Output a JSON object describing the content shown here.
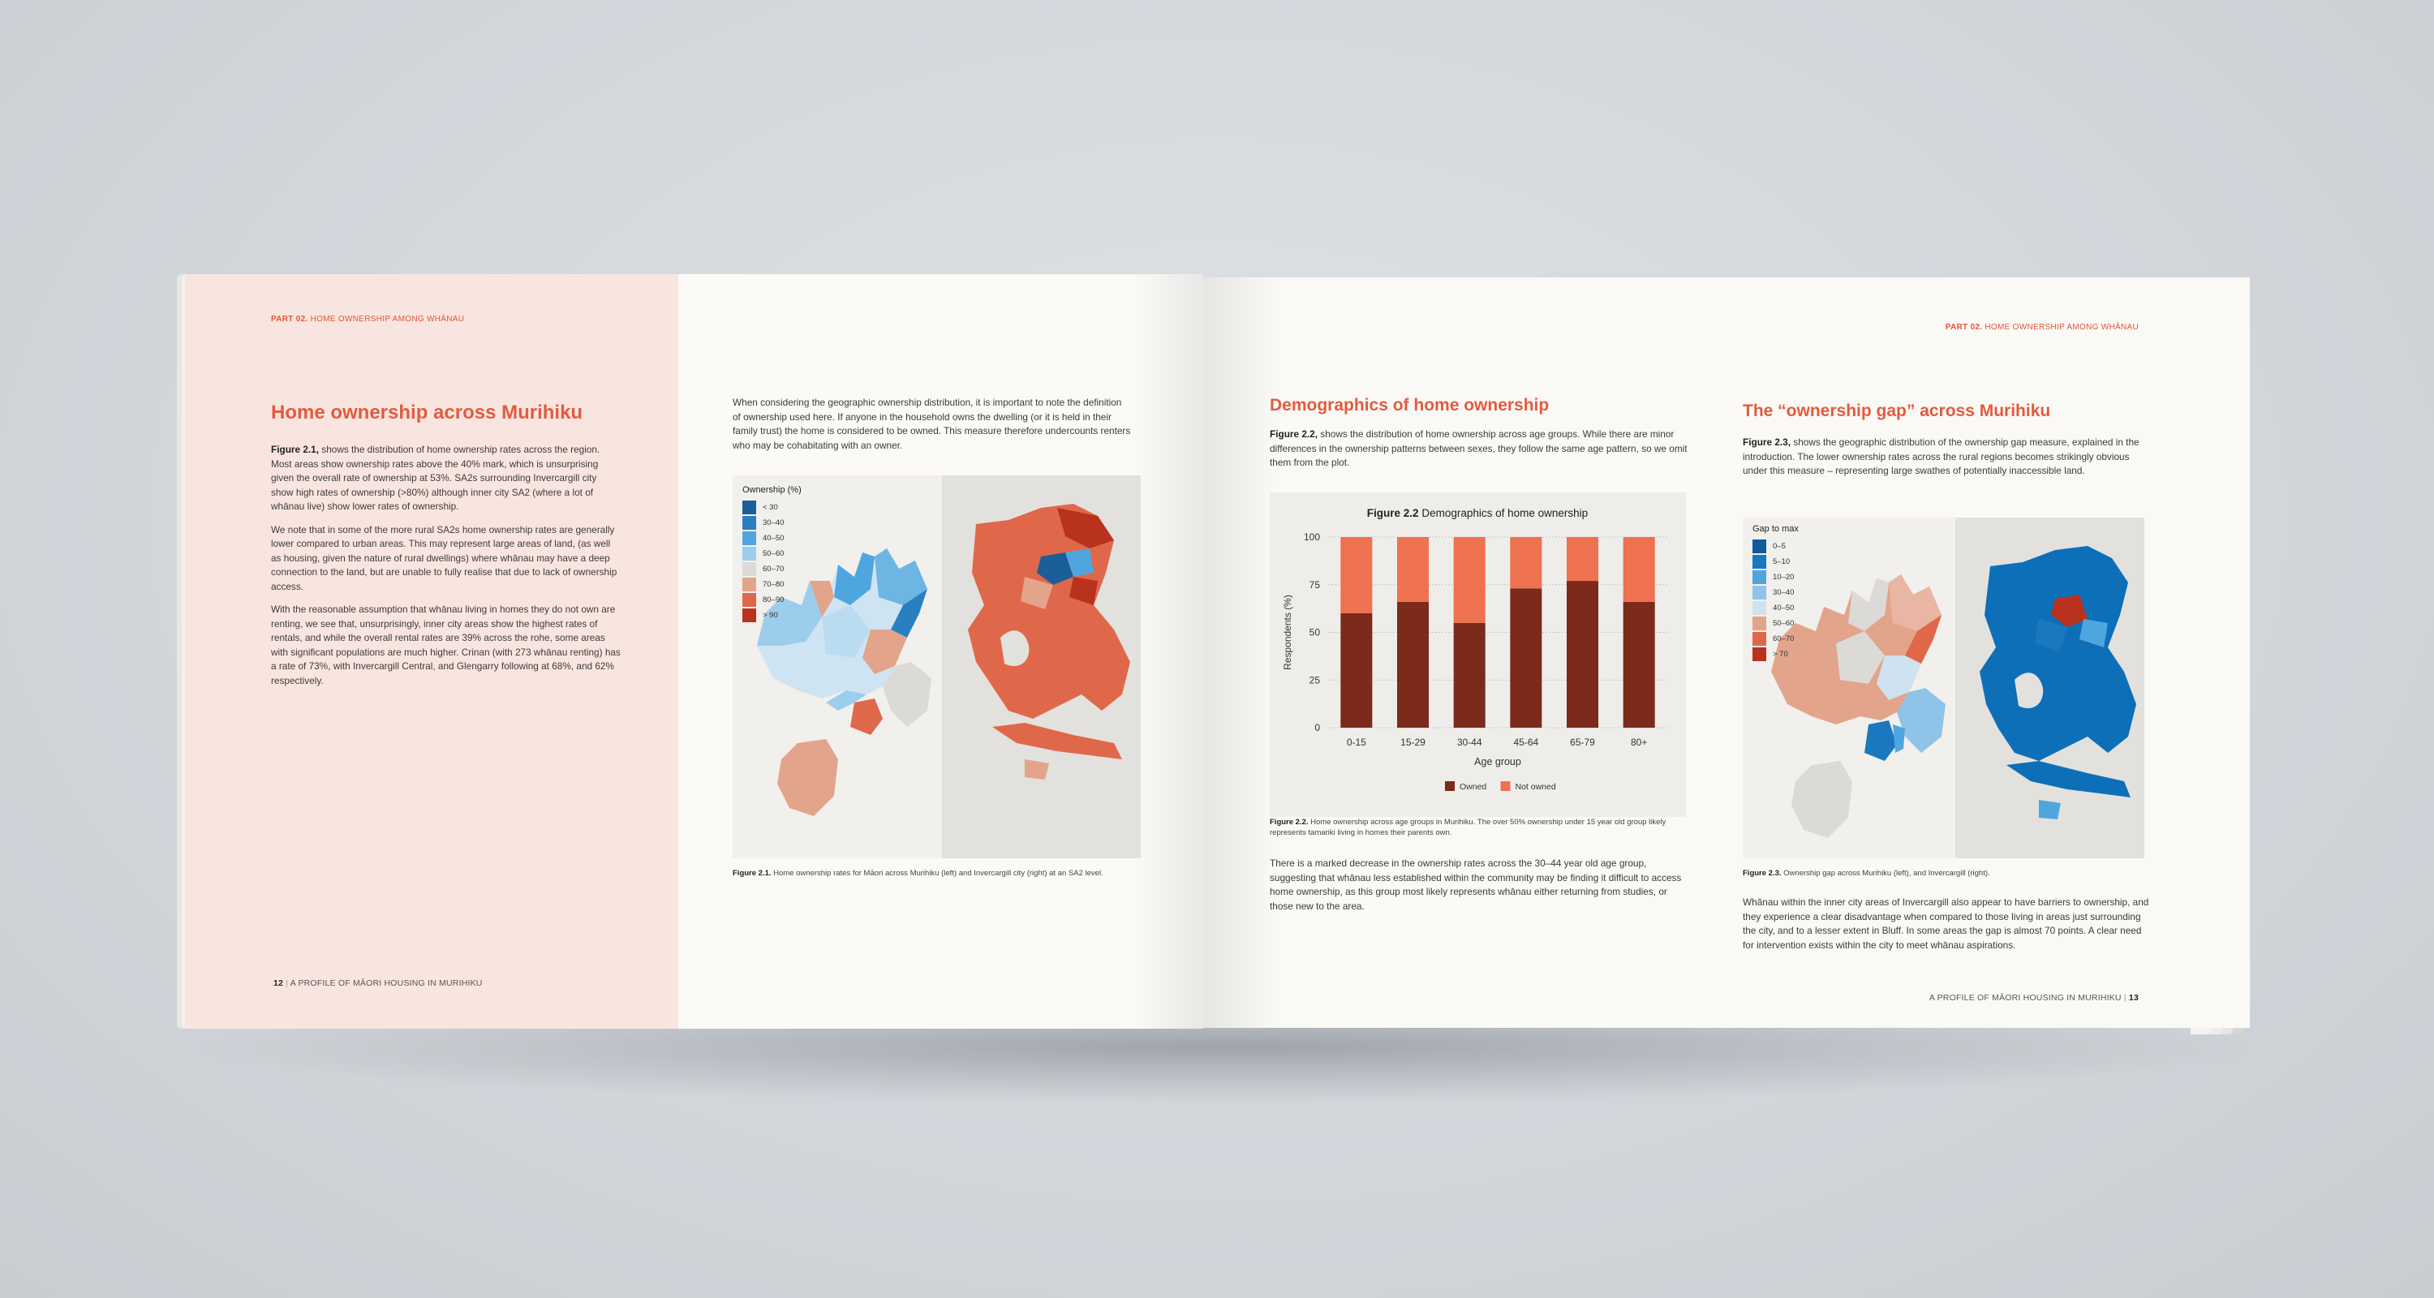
{
  "colors": {
    "accent": "#e25b3f",
    "owned": "#7b2a1c",
    "not_owned": "#ee7150"
  },
  "left_page": {
    "running_head": {
      "part": "PART 02.",
      "title": "HOME OWNERSHIP AMONG WHĀNAU"
    },
    "heading": "Home ownership across Murihiku",
    "intro": {
      "ref": "Figure 2.1,",
      "text": " shows the distribution of home ownership rates across the region. Most areas show ownership rates above the 40% mark, which is unsurprising given the overall rate of ownership at 53%. SA2s surrounding Invercargill city show high rates of ownership (>80%) although inner city SA2 (where a lot of whānau live) show lower rates of ownership."
    },
    "para2": "We note that in some of the more rural SA2s home ownership rates are generally lower compared to urban areas. This may represent large areas of land, (as well as housing, given the nature of rural dwellings) where whānau may have a deep connection to the land, but are unable to fully realise that due to lack of ownership access.",
    "para3": "With the reasonable assumption that whānau living in homes they do not own are renting, we see that, unsurprisingly, inner city areas show the highest rates of rentals, and while the overall rental rates are 39% across the rohe, some areas with significant populations are much higher. Crinan (with 273 whānau renting) has a rate of 73%, with Invercargill Central, and Glengarry following at 68%, and 62% respectively.",
    "column2": "When considering the geographic ownership distribution, it is important to note the definition of ownership used here. If anyone in the household owns the dwelling (or it is held in their family trust) the home is considered to be owned. This measure therefore undercounts renters who may be cohabitating with an owner.",
    "figure_caption": {
      "ref": "Figure 2.1.",
      "text": " Home ownership rates for Māori across Murihiku (left) and Invercargill city (right) at an SA2 level."
    },
    "legend": {
      "title": "Ownership (%)",
      "items": [
        {
          "label": "< 30",
          "color": "#1a5f99"
        },
        {
          "label": "30–40",
          "color": "#2a7fc1"
        },
        {
          "label": "40–50",
          "color": "#4fa6de"
        },
        {
          "label": "50–60",
          "color": "#9dcdec"
        },
        {
          "label": "60–70",
          "color": "#dcdad6"
        },
        {
          "label": "70–80",
          "color": "#e3a48c"
        },
        {
          "label": "80–90",
          "color": "#e0684a"
        },
        {
          "label": "> 90",
          "color": "#b8321e"
        }
      ]
    },
    "folio": {
      "number": "12",
      "title": "A PROFILE OF MĀORI HOUSING IN MURIHIKU"
    }
  },
  "right_page": {
    "running_head": {
      "part": "PART 02.",
      "title": "HOME OWNERSHIP AMONG WHĀNAU"
    },
    "demo_heading": "Demographics of home ownership",
    "demo_intro": {
      "ref": "Figure 2.2,",
      "text": " shows the distribution of home ownership across age groups. While there are minor differences in the ownership patterns between sexes, they follow the same age pattern, so we omit them from the plot."
    },
    "fig22_caption": {
      "ref": "Figure 2.2.",
      "text": " Home ownership across age groups in Murihiku. The over 50% ownership under 15 year old group likely represents tamariki living in homes their parents own."
    },
    "demo_para": "There is a marked decrease in the ownership rates across the 30–44 year old age group, suggesting that whānau less established within the community may be finding it difficult to access home ownership, as this group most likely represents whānau either returning from studies, or those new to the area.",
    "gap_heading": "The “ownership gap” across Murihiku",
    "gap_intro": {
      "ref": "Figure 2.3,",
      "text": " shows the geographic distribution of the ownership gap measure, explained in the introduction. The lower ownership rates across the rural regions becomes strikingly obvious under this measure – representing large swathes of potentially inaccessible land."
    },
    "fig23_caption": {
      "ref": "Figure 2.3.",
      "text": " Ownership gap across Murihiku (left), and Invercargill (right)."
    },
    "gap_para": "Whānau within the inner city areas of Invercargill also appear to have barriers to ownership, and they experience a clear disadvantage when compared to those living in areas just surrounding the city, and to a lesser extent in Bluff. In some areas the gap is almost 70 points. A clear need for intervention exists within the city to meet whānau aspirations.",
    "gap_legend": {
      "title": "Gap to max",
      "items": [
        {
          "label": "0–5",
          "color": "#0d5c9e"
        },
        {
          "label": "5–10",
          "color": "#1a78bf"
        },
        {
          "label": "10–20",
          "color": "#4fa6de"
        },
        {
          "label": "30–40",
          "color": "#8fc4e8"
        },
        {
          "label": "40–50",
          "color": "#cfe2ef"
        },
        {
          "label": "50–60",
          "color": "#e3a48c"
        },
        {
          "label": "60–70",
          "color": "#e0684a"
        },
        {
          "label": "> 70",
          "color": "#b8321e"
        }
      ]
    },
    "folio": {
      "number": "13",
      "title": "A PROFILE OF MĀORI HOUSING IN MURIHIKU"
    }
  },
  "chart_data": {
    "type": "bar",
    "stacked": true,
    "title_ref": "Figure 2.2",
    "title": "Demographics of home ownership",
    "xlabel": "Age group",
    "ylabel": "Respondents (%)",
    "ylim": [
      0,
      100
    ],
    "yticks": [
      0,
      25,
      50,
      75,
      100
    ],
    "grid": true,
    "legend_position": "bottom",
    "categories": [
      "0-15",
      "15-29",
      "30-44",
      "45-64",
      "65-79",
      "80+"
    ],
    "series": [
      {
        "name": "Owned",
        "values": [
          60,
          66,
          55,
          73,
          77,
          66
        ]
      },
      {
        "name": "Not owned",
        "values": [
          40,
          34,
          45,
          27,
          23,
          34
        ]
      }
    ]
  }
}
